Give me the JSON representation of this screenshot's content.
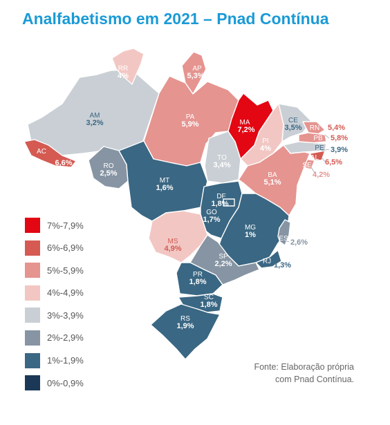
{
  "title": "Analfabetismo em 2021 – Pnad Contínua",
  "source_lines": [
    "Fonte: Elaboração própria",
    "com Pnad Contínua."
  ],
  "colors": {
    "c7": "#e30613",
    "c6": "#d45a52",
    "c5": "#e59490",
    "c4": "#f2c7c3",
    "c3": "#c9cfd5",
    "c2": "#8694a3",
    "c1": "#3a6783",
    "c0": "#1b3957"
  },
  "legend": [
    {
      "label": "7%-7,9%",
      "color": "#e30613"
    },
    {
      "label": "6%-6,9%",
      "color": "#d45a52"
    },
    {
      "label": "5%-5,9%",
      "color": "#e59490"
    },
    {
      "label": "4%-4,9%",
      "color": "#f2c7c3"
    },
    {
      "label": "3%-3,9%",
      "color": "#c9cfd5"
    },
    {
      "label": "2%-2,9%",
      "color": "#8694a3"
    },
    {
      "label": "1%-1,9%",
      "color": "#3a6783"
    },
    {
      "label": "0%-0,9%",
      "color": "#1b3957"
    }
  ],
  "states": {
    "RR": {
      "sigla": "RR",
      "value": "4%"
    },
    "AP": {
      "sigla": "AP",
      "value": "5,3%"
    },
    "AM": {
      "sigla": "AM",
      "value": "3,2%"
    },
    "PA": {
      "sigla": "PA",
      "value": "5,9%"
    },
    "MA": {
      "sigla": "MA",
      "value": "7,2%"
    },
    "CE": {
      "sigla": "CE",
      "value": "3,5%"
    },
    "RN": {
      "sigla": "RN",
      "value": "5,4%"
    },
    "PB": {
      "sigla": "PB",
      "value": "5,8%"
    },
    "PE": {
      "sigla": "PE",
      "value": "3,9%"
    },
    "AL": {
      "sigla": "AL",
      "value": "6,5%"
    },
    "SE": {
      "sigla": "SE",
      "value": "4,2%"
    },
    "PI": {
      "sigla": "PI",
      "value": "4%"
    },
    "AC": {
      "sigla": "AC",
      "value": "6,6%"
    },
    "RO": {
      "sigla": "RO",
      "value": "2,5%"
    },
    "TO": {
      "sigla": "TO",
      "value": "3,4%"
    },
    "BA": {
      "sigla": "BA",
      "value": "5,1%"
    },
    "MT": {
      "sigla": "MT",
      "value": "1,6%"
    },
    "DF": {
      "sigla": "DF",
      "value": "1,8%"
    },
    "GO": {
      "sigla": "GO",
      "value": "1,7%"
    },
    "MG": {
      "sigla": "MG",
      "value": "1%"
    },
    "ES": {
      "sigla": "ES",
      "value": "2,6%"
    },
    "MS": {
      "sigla": "MS",
      "value": "4,9%"
    },
    "SP": {
      "sigla": "SP",
      "value": "2,2%"
    },
    "RJ": {
      "sigla": "RJ",
      "value": "1,3%"
    },
    "PR": {
      "sigla": "PR",
      "value": "1,8%"
    },
    "SC": {
      "sigla": "SC",
      "value": "1,8%"
    },
    "RS": {
      "sigla": "RS",
      "value": "1,9%"
    }
  }
}
